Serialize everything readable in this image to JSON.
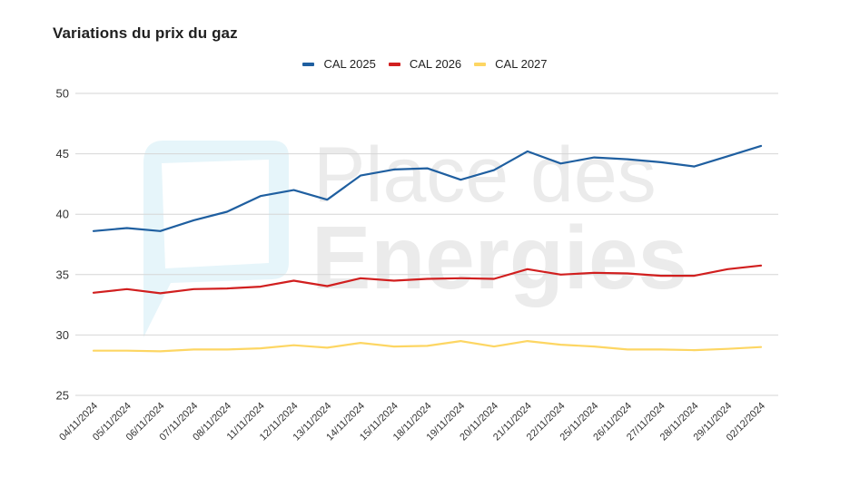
{
  "watermark": {
    "logo_text_line1": "Place des",
    "logo_text_line2": "Energies",
    "logo_color": "#e3f4f9"
  },
  "chart_data": {
    "type": "line",
    "title": "Variations du prix du gaz",
    "xlabel": "",
    "ylabel": "",
    "ylim": [
      25,
      50
    ],
    "yticks": [
      25,
      30,
      35,
      40,
      45,
      50
    ],
    "grid": true,
    "legend_position": "top-center",
    "categories": [
      "04/11/2024",
      "05/11/2024",
      "06/11/2024",
      "07/11/2024",
      "08/11/2024",
      "11/11/2024",
      "12/11/2024",
      "13/11/2024",
      "14/11/2024",
      "15/11/2024",
      "18/11/2024",
      "19/11/2024",
      "20/11/2024",
      "21/11/2024",
      "22/11/2024",
      "25/11/2024",
      "26/11/2024",
      "27/11/2024",
      "28/11/2024",
      "29/11/2024",
      "02/12/2024"
    ],
    "series": [
      {
        "name": "CAL 2025",
        "color": "#1f5fa0",
        "values": [
          38.6,
          38.85,
          38.6,
          39.5,
          40.2,
          41.5,
          42.0,
          41.2,
          43.2,
          43.7,
          43.8,
          42.85,
          43.65,
          45.2,
          44.2,
          44.7,
          44.55,
          44.3,
          43.95,
          44.8,
          45.65
        ]
      },
      {
        "name": "CAL 2026",
        "color": "#d11f1f",
        "values": [
          33.5,
          33.8,
          33.45,
          33.8,
          33.85,
          34.0,
          34.5,
          34.05,
          34.7,
          34.5,
          34.65,
          34.7,
          34.65,
          35.45,
          35.0,
          35.15,
          35.1,
          34.9,
          34.9,
          35.45,
          35.75
        ]
      },
      {
        "name": "CAL 2027",
        "color": "#fdd663",
        "values": [
          28.7,
          28.7,
          28.65,
          28.8,
          28.8,
          28.9,
          29.15,
          28.95,
          29.35,
          29.05,
          29.1,
          29.5,
          29.05,
          29.5,
          29.2,
          29.05,
          28.8,
          28.8,
          28.75,
          28.85,
          29.0
        ]
      }
    ]
  }
}
